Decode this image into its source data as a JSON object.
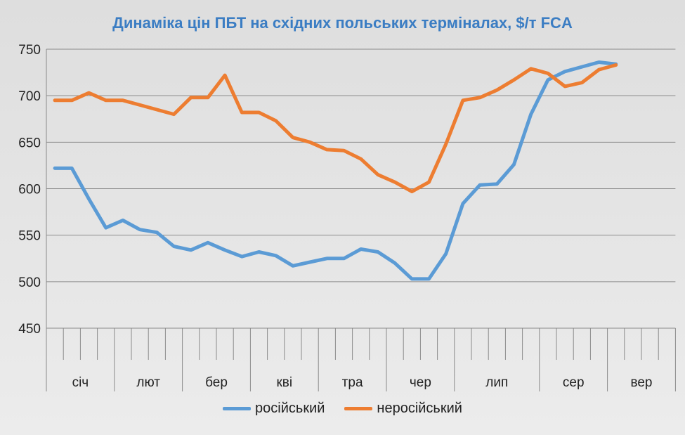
{
  "chart_data": {
    "type": "line",
    "title": "Динаміка цін ПБТ на східних польських терміналах, $/т FCA",
    "xlabel": "",
    "ylabel": "",
    "ylim": [
      450,
      750
    ],
    "yticks": [
      450,
      500,
      550,
      600,
      650,
      700,
      750
    ],
    "grid": true,
    "legend_position": "bottom",
    "months": [
      {
        "label": "січ",
        "weeks": 4
      },
      {
        "label": "лют",
        "weeks": 4
      },
      {
        "label": "бер",
        "weeks": 4
      },
      {
        "label": "кві",
        "weeks": 4
      },
      {
        "label": "тра",
        "weeks": 4
      },
      {
        "label": "чер",
        "weeks": 4
      },
      {
        "label": "лип",
        "weeks": 5
      },
      {
        "label": "сер",
        "weeks": 4
      },
      {
        "label": "вер",
        "weeks": 4
      }
    ],
    "series": [
      {
        "name": "російський",
        "color": "#5b9bd5",
        "values": [
          622,
          622,
          589,
          558,
          566,
          556,
          553,
          538,
          534,
          542,
          534,
          527,
          532,
          528,
          517,
          521,
          525,
          525,
          535,
          532,
          520,
          503,
          503,
          530,
          584,
          604,
          605,
          626,
          680,
          717,
          726,
          731,
          736,
          734
        ]
      },
      {
        "name": "неросійський",
        "color": "#ed7d31",
        "values": [
          695,
          695,
          703,
          695,
          695,
          690,
          685,
          680,
          698,
          698,
          722,
          682,
          682,
          673,
          655,
          650,
          642,
          641,
          632,
          615,
          607,
          597,
          607,
          648,
          695,
          698,
          706,
          717,
          729,
          724,
          710,
          714,
          728,
          733
        ]
      }
    ]
  }
}
